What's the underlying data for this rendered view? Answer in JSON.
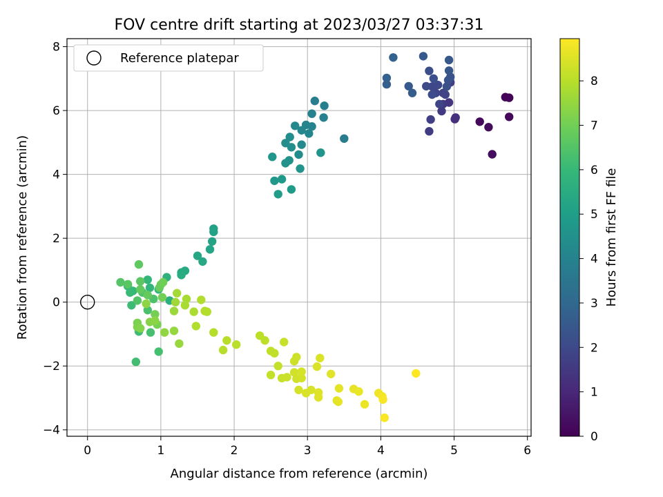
{
  "chart_data": {
    "type": "scatter",
    "title": "FOV centre drift starting at 2023/03/27 03:37:31",
    "xlabel": "Angular distance from reference (arcmin)",
    "ylabel": "Rotation from reference (arcmin)",
    "xlim": [
      -0.28,
      6.05
    ],
    "ylim": [
      -4.2,
      8.25
    ],
    "xticks": [
      0,
      1,
      2,
      3,
      4,
      5,
      6
    ],
    "yticks": [
      -4,
      -2,
      0,
      2,
      4,
      6,
      8
    ],
    "grid": true,
    "legend": {
      "placement": "top-left",
      "entries": [
        {
          "label": "Reference platepar",
          "marker": "open-circle"
        }
      ]
    },
    "reference_point": {
      "x": 0,
      "y": 0
    },
    "colorbar": {
      "label": "Hours from first FF file",
      "colormap": "viridis",
      "range": [
        0,
        8.95
      ],
      "ticks": [
        0,
        1,
        2,
        3,
        4,
        5,
        6,
        7,
        8
      ]
    },
    "colormap_stops": [
      "#440154",
      "#482878",
      "#3e4989",
      "#31688e",
      "#26828e",
      "#1f9e89",
      "#35b779",
      "#6ece58",
      "#b5de2b",
      "#fde725"
    ],
    "points": [
      {
        "x": 5.75,
        "y": 6.4,
        "t": 0.05
      },
      {
        "x": 5.7,
        "y": 6.42,
        "t": 0.1
      },
      {
        "x": 5.75,
        "y": 5.8,
        "t": 0.15
      },
      {
        "x": 5.35,
        "y": 5.65,
        "t": 0.2
      },
      {
        "x": 5.47,
        "y": 5.48,
        "t": 0.25
      },
      {
        "x": 5.52,
        "y": 4.63,
        "t": 0.3
      },
      {
        "x": 5.01,
        "y": 5.73,
        "t": 1.2
      },
      {
        "x": 5.02,
        "y": 5.78,
        "t": 1.25
      },
      {
        "x": 4.93,
        "y": 6.25,
        "t": 1.4
      },
      {
        "x": 4.85,
        "y": 6.2,
        "t": 1.5
      },
      {
        "x": 4.83,
        "y": 5.98,
        "t": 1.55
      },
      {
        "x": 4.66,
        "y": 5.35,
        "t": 1.6
      },
      {
        "x": 4.68,
        "y": 5.72,
        "t": 1.65
      },
      {
        "x": 4.95,
        "y": 6.88,
        "t": 1.7
      },
      {
        "x": 4.85,
        "y": 6.55,
        "t": 1.75
      },
      {
        "x": 4.88,
        "y": 6.5,
        "t": 1.8
      },
      {
        "x": 4.8,
        "y": 6.2,
        "t": 1.85
      },
      {
        "x": 4.75,
        "y": 6.55,
        "t": 1.9
      },
      {
        "x": 4.7,
        "y": 6.75,
        "t": 1.95
      },
      {
        "x": 4.78,
        "y": 6.8,
        "t": 2.0
      },
      {
        "x": 4.62,
        "y": 6.76,
        "t": 2.05
      },
      {
        "x": 4.7,
        "y": 6.5,
        "t": 2.1
      },
      {
        "x": 4.66,
        "y": 7.24,
        "t": 2.15
      },
      {
        "x": 4.72,
        "y": 7.0,
        "t": 2.2
      },
      {
        "x": 4.9,
        "y": 6.75,
        "t": 2.25
      },
      {
        "x": 4.92,
        "y": 6.95,
        "t": 2.3
      },
      {
        "x": 4.95,
        "y": 7.05,
        "t": 2.35
      },
      {
        "x": 4.93,
        "y": 7.25,
        "t": 2.4
      },
      {
        "x": 4.93,
        "y": 7.58,
        "t": 2.45
      },
      {
        "x": 4.58,
        "y": 7.7,
        "t": 2.5
      },
      {
        "x": 4.38,
        "y": 6.76,
        "t": 2.55
      },
      {
        "x": 4.43,
        "y": 6.55,
        "t": 2.6
      },
      {
        "x": 4.08,
        "y": 6.82,
        "t": 2.7
      },
      {
        "x": 4.08,
        "y": 7.02,
        "t": 2.75
      },
      {
        "x": 4.17,
        "y": 7.66,
        "t": 2.8
      },
      {
        "x": 3.5,
        "y": 5.12,
        "t": 3.7
      },
      {
        "x": 3.1,
        "y": 6.3,
        "t": 3.8
      },
      {
        "x": 3.23,
        "y": 6.15,
        "t": 3.85
      },
      {
        "x": 3.22,
        "y": 5.78,
        "t": 3.9
      },
      {
        "x": 3.06,
        "y": 5.9,
        "t": 3.95
      },
      {
        "x": 3.06,
        "y": 5.5,
        "t": 4.0
      },
      {
        "x": 2.98,
        "y": 5.55,
        "t": 4.05
      },
      {
        "x": 3.02,
        "y": 5.28,
        "t": 4.1
      },
      {
        "x": 2.92,
        "y": 5.38,
        "t": 4.15
      },
      {
        "x": 2.83,
        "y": 5.52,
        "t": 4.2
      },
      {
        "x": 2.92,
        "y": 4.93,
        "t": 4.25
      },
      {
        "x": 2.88,
        "y": 4.62,
        "t": 4.3
      },
      {
        "x": 2.76,
        "y": 5.17,
        "t": 4.35
      },
      {
        "x": 2.7,
        "y": 4.98,
        "t": 4.4
      },
      {
        "x": 2.78,
        "y": 4.85,
        "t": 4.45
      },
      {
        "x": 2.75,
        "y": 4.44,
        "t": 4.5
      },
      {
        "x": 2.7,
        "y": 4.35,
        "t": 4.55
      },
      {
        "x": 2.9,
        "y": 4.18,
        "t": 4.6
      },
      {
        "x": 3.18,
        "y": 4.68,
        "t": 4.65
      },
      {
        "x": 2.52,
        "y": 4.55,
        "t": 4.7
      },
      {
        "x": 2.55,
        "y": 3.8,
        "t": 4.75
      },
      {
        "x": 2.65,
        "y": 3.85,
        "t": 4.8
      },
      {
        "x": 2.78,
        "y": 3.53,
        "t": 4.85
      },
      {
        "x": 2.6,
        "y": 3.38,
        "t": 4.9
      },
      {
        "x": 1.72,
        "y": 2.3,
        "t": 5.1
      },
      {
        "x": 1.72,
        "y": 2.2,
        "t": 5.15
      },
      {
        "x": 1.7,
        "y": 1.9,
        "t": 5.2
      },
      {
        "x": 1.67,
        "y": 1.65,
        "t": 5.25
      },
      {
        "x": 1.5,
        "y": 1.45,
        "t": 5.3
      },
      {
        "x": 1.57,
        "y": 1.27,
        "t": 5.35
      },
      {
        "x": 1.33,
        "y": 0.98,
        "t": 5.4
      },
      {
        "x": 1.28,
        "y": 0.93,
        "t": 5.45
      },
      {
        "x": 1.28,
        "y": 0.85,
        "t": 5.5
      },
      {
        "x": 1.12,
        "y": 0.05,
        "t": 5.6
      },
      {
        "x": 1.08,
        "y": 0.78,
        "t": 5.7
      },
      {
        "x": 0.97,
        "y": 0.4,
        "t": 5.8
      },
      {
        "x": 0.85,
        "y": 0.45,
        "t": 5.85
      },
      {
        "x": 0.82,
        "y": 0.7,
        "t": 5.9
      },
      {
        "x": 0.62,
        "y": 0.35,
        "t": 5.95
      },
      {
        "x": 0.55,
        "y": 0.5,
        "t": 6.0
      },
      {
        "x": 0.58,
        "y": 0.3,
        "t": 6.05
      },
      {
        "x": 0.6,
        "y": -0.1,
        "t": 6.1
      },
      {
        "x": 0.7,
        "y": -0.92,
        "t": 6.15
      },
      {
        "x": 0.66,
        "y": -1.87,
        "t": 6.2
      },
      {
        "x": 0.97,
        "y": -1.55,
        "t": 6.25
      },
      {
        "x": 0.86,
        "y": -0.95,
        "t": 6.3
      },
      {
        "x": 0.82,
        "y": -0.25,
        "t": 6.35
      },
      {
        "x": 0.9,
        "y": 0.1,
        "t": 6.4
      },
      {
        "x": 0.75,
        "y": 0.3,
        "t": 6.45
      },
      {
        "x": 0.68,
        "y": 0.05,
        "t": 6.5
      },
      {
        "x": 0.45,
        "y": 0.62,
        "t": 6.55
      },
      {
        "x": 0.55,
        "y": 0.56,
        "t": 6.6
      },
      {
        "x": 0.72,
        "y": 0.65,
        "t": 6.65
      },
      {
        "x": 0.7,
        "y": 1.18,
        "t": 6.7
      },
      {
        "x": 0.72,
        "y": 0.4,
        "t": 6.75
      },
      {
        "x": 0.82,
        "y": 0.22,
        "t": 6.8
      },
      {
        "x": 0.98,
        "y": 0.45,
        "t": 6.85
      },
      {
        "x": 1.0,
        "y": 0.55,
        "t": 6.9
      },
      {
        "x": 1.03,
        "y": 0.62,
        "t": 6.95
      },
      {
        "x": 1.02,
        "y": 0.15,
        "t": 7.0
      },
      {
        "x": 0.92,
        "y": -0.38,
        "t": 7.05
      },
      {
        "x": 0.95,
        "y": -0.7,
        "t": 7.1
      },
      {
        "x": 0.68,
        "y": -0.65,
        "t": 7.15
      },
      {
        "x": 0.68,
        "y": -0.78,
        "t": 7.2
      },
      {
        "x": 0.72,
        "y": -0.82,
        "t": 7.25
      },
      {
        "x": 0.85,
        "y": -0.62,
        "t": 7.3
      },
      {
        "x": 0.92,
        "y": -0.58,
        "t": 7.35
      },
      {
        "x": 0.8,
        "y": -0.05,
        "t": 7.4
      },
      {
        "x": 1.05,
        "y": -0.95,
        "t": 7.45
      },
      {
        "x": 1.18,
        "y": -0.9,
        "t": 7.5
      },
      {
        "x": 1.25,
        "y": -1.3,
        "t": 7.55
      },
      {
        "x": 1.18,
        "y": -0.28,
        "t": 7.6
      },
      {
        "x": 1.2,
        "y": 0.0,
        "t": 7.65
      },
      {
        "x": 1.22,
        "y": 0.28,
        "t": 7.7
      },
      {
        "x": 1.35,
        "y": 0.1,
        "t": 7.75
      },
      {
        "x": 1.33,
        "y": -0.1,
        "t": 7.8
      },
      {
        "x": 1.45,
        "y": -0.3,
        "t": 7.85
      },
      {
        "x": 1.48,
        "y": -0.75,
        "t": 7.88
      },
      {
        "x": 1.55,
        "y": 0.07,
        "t": 7.9
      },
      {
        "x": 1.6,
        "y": -0.28,
        "t": 7.92
      },
      {
        "x": 1.63,
        "y": -0.3,
        "t": 7.94
      },
      {
        "x": 1.72,
        "y": -0.95,
        "t": 7.96
      },
      {
        "x": 1.85,
        "y": -1.5,
        "t": 7.98
      },
      {
        "x": 1.9,
        "y": -1.2,
        "t": 8.0
      },
      {
        "x": 2.03,
        "y": -1.33,
        "t": 8.02
      },
      {
        "x": 2.35,
        "y": -1.05,
        "t": 8.05
      },
      {
        "x": 2.42,
        "y": -1.2,
        "t": 8.08
      },
      {
        "x": 2.5,
        "y": -1.53,
        "t": 8.1
      },
      {
        "x": 2.55,
        "y": -1.6,
        "t": 8.12
      },
      {
        "x": 2.5,
        "y": -2.28,
        "t": 8.15
      },
      {
        "x": 2.6,
        "y": -2.0,
        "t": 8.18
      },
      {
        "x": 2.68,
        "y": -1.25,
        "t": 8.2
      },
      {
        "x": 2.65,
        "y": -2.38,
        "t": 8.22
      },
      {
        "x": 2.72,
        "y": -2.35,
        "t": 8.25
      },
      {
        "x": 2.82,
        "y": -1.85,
        "t": 8.28
      },
      {
        "x": 2.85,
        "y": -1.72,
        "t": 8.3
      },
      {
        "x": 2.82,
        "y": -2.2,
        "t": 8.32
      },
      {
        "x": 2.85,
        "y": -2.4,
        "t": 8.34
      },
      {
        "x": 2.92,
        "y": -2.38,
        "t": 8.36
      },
      {
        "x": 2.92,
        "y": -2.18,
        "t": 8.38
      },
      {
        "x": 2.88,
        "y": -2.75,
        "t": 8.4
      },
      {
        "x": 2.98,
        "y": -2.85,
        "t": 8.42
      },
      {
        "x": 3.05,
        "y": -2.75,
        "t": 8.44
      },
      {
        "x": 3.13,
        "y": -2.02,
        "t": 8.46
      },
      {
        "x": 3.17,
        "y": -1.75,
        "t": 8.48
      },
      {
        "x": 3.15,
        "y": -2.83,
        "t": 8.5
      },
      {
        "x": 3.15,
        "y": -2.98,
        "t": 8.52
      },
      {
        "x": 3.32,
        "y": -2.25,
        "t": 8.55
      },
      {
        "x": 3.4,
        "y": -3.08,
        "t": 8.58
      },
      {
        "x": 3.43,
        "y": -2.7,
        "t": 8.6
      },
      {
        "x": 3.42,
        "y": -3.12,
        "t": 8.62
      },
      {
        "x": 3.63,
        "y": -2.72,
        "t": 8.65
      },
      {
        "x": 3.7,
        "y": -2.8,
        "t": 8.68
      },
      {
        "x": 3.78,
        "y": -3.2,
        "t": 8.7
      },
      {
        "x": 3.97,
        "y": -2.85,
        "t": 8.75
      },
      {
        "x": 4.02,
        "y": -2.95,
        "t": 8.8
      },
      {
        "x": 4.03,
        "y": -3.05,
        "t": 8.85
      },
      {
        "x": 4.05,
        "y": -3.62,
        "t": 8.9
      },
      {
        "x": 4.48,
        "y": -2.23,
        "t": 8.95
      }
    ]
  }
}
